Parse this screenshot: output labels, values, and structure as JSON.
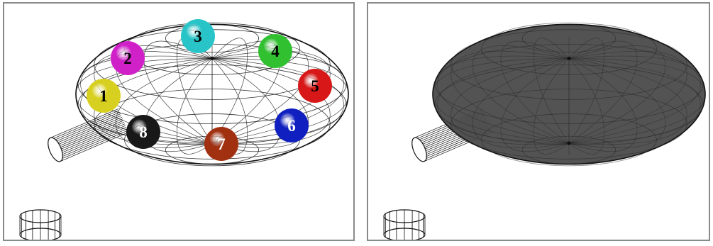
{
  "colors": {
    "wire": "#111111",
    "shaded_fill": "#4a4a4a",
    "panel_border": "#8a8a8a"
  },
  "panels": [
    {
      "name": "wireframe-view",
      "style": "wireframe"
    },
    {
      "name": "shaded-view",
      "style": "shaded"
    }
  ],
  "balls": [
    {
      "label": "1",
      "color": "#d8d020",
      "text_color": "#000000"
    },
    {
      "label": "2",
      "color": "#d020c8",
      "text_color": "#000000"
    },
    {
      "label": "3",
      "color": "#28c4c8",
      "text_color": "#000000"
    },
    {
      "label": "4",
      "color": "#30c030",
      "text_color": "#000000"
    },
    {
      "label": "5",
      "color": "#d81818",
      "text_color": "#000000"
    },
    {
      "label": "6",
      "color": "#1020c0",
      "text_color": "#ffffff"
    },
    {
      "label": "7",
      "color": "#a03010",
      "text_color": "#ffffff"
    },
    {
      "label": "8",
      "color": "#181818",
      "text_color": "#ffffff"
    }
  ]
}
